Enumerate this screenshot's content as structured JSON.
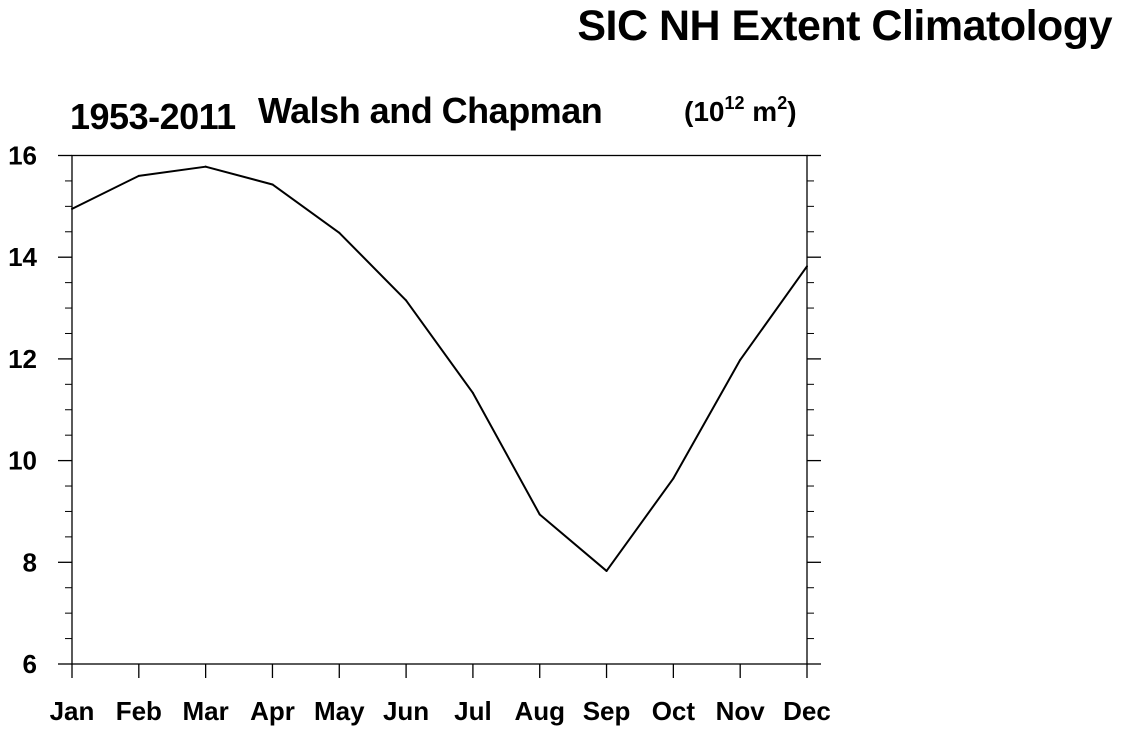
{
  "chart_data": {
    "type": "line",
    "title": "SIC NH Extent Climatology",
    "left_string": "1953-2011",
    "center_string": "Walsh and Chapman",
    "units": {
      "open": "(10",
      "exp1": "12",
      "mid": " m",
      "exp2": "2",
      "close": ")"
    },
    "categories": [
      "Jan",
      "Feb",
      "Mar",
      "Apr",
      "May",
      "Jun",
      "Jul",
      "Aug",
      "Sep",
      "Oct",
      "Nov",
      "Dec"
    ],
    "values": [
      14.95,
      15.6,
      15.78,
      15.43,
      14.48,
      13.15,
      11.33,
      8.94,
      7.83,
      9.65,
      11.98,
      13.82
    ],
    "ylim": [
      6,
      16
    ],
    "yticks": [
      6,
      8,
      10,
      12,
      14,
      16
    ],
    "ytick_labels": [
      "6",
      "8",
      "10",
      "12",
      "14",
      "16"
    ],
    "xlabel": "",
    "ylabel": "",
    "grid": false,
    "line_color": "#000000"
  }
}
